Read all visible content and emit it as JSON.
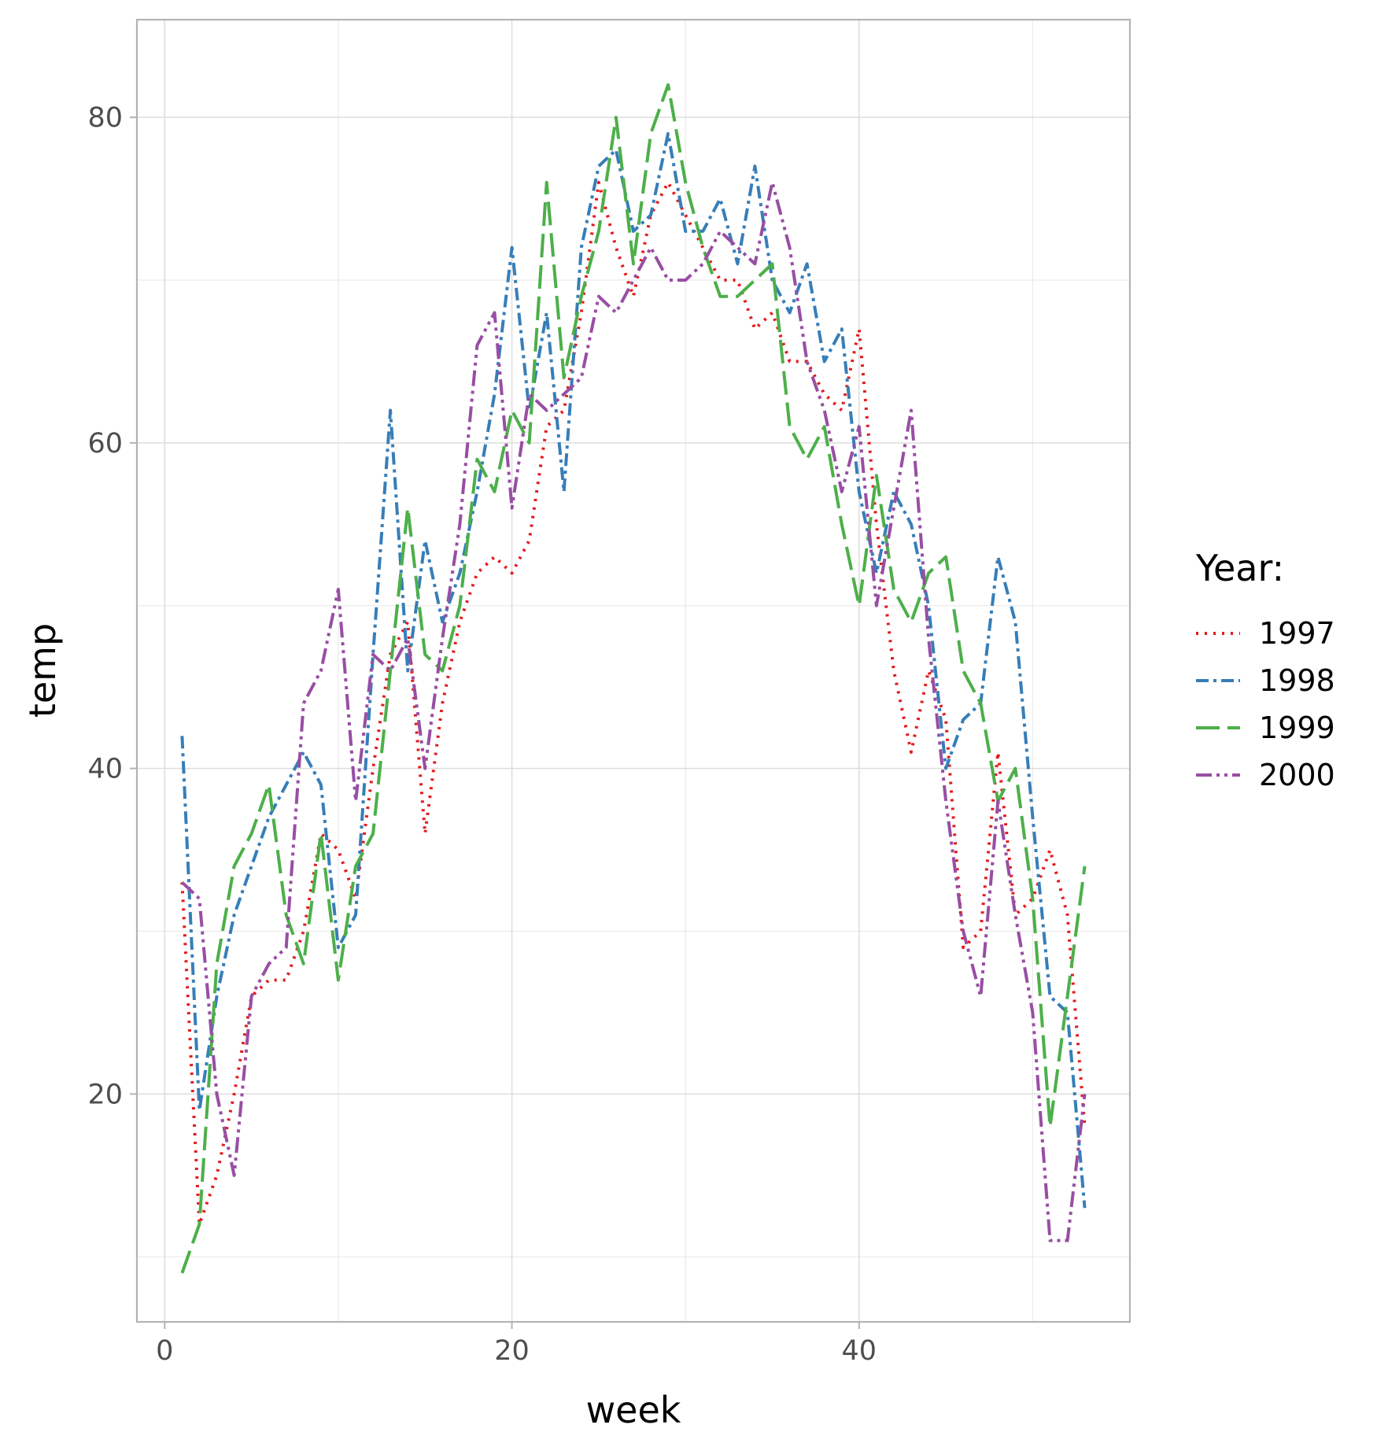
{
  "chart_data": {
    "type": "line",
    "xlabel": "week",
    "ylabel": "temp",
    "xlim": [
      -1.6,
      55.6
    ],
    "ylim": [
      6,
      86
    ],
    "xticks": [
      0,
      20,
      40
    ],
    "yticks": [
      20,
      40,
      60,
      80
    ],
    "xminor": [
      10,
      30,
      50
    ],
    "yminor": [
      10,
      30,
      50,
      70
    ],
    "grid": true,
    "legend": {
      "title": "Year:",
      "position": "right"
    },
    "series": [
      {
        "name": "1997",
        "color": "#e41a1c",
        "dash": "3,8",
        "x": [
          1,
          2,
          3,
          4,
          5,
          6,
          7,
          8,
          9,
          10,
          11,
          12,
          13,
          14,
          15,
          16,
          17,
          18,
          19,
          20,
          21,
          22,
          23,
          24,
          25,
          26,
          27,
          28,
          29,
          30,
          31,
          32,
          33,
          34,
          35,
          36,
          37,
          38,
          39,
          40,
          41,
          42,
          43,
          44,
          45,
          46,
          47,
          48,
          49,
          50,
          51,
          52,
          53
        ],
        "y": [
          33,
          12,
          15,
          20,
          26,
          27,
          27,
          30,
          36,
          35,
          32,
          40,
          47,
          49,
          36,
          44,
          49,
          52,
          53,
          52,
          54,
          61,
          62,
          68,
          76,
          72,
          69,
          74,
          76,
          74,
          72,
          70,
          70,
          67,
          68,
          65,
          65,
          63,
          62,
          67,
          55,
          46,
          41,
          46,
          43,
          29,
          30,
          41,
          31,
          32,
          35,
          31,
          18
        ]
      },
      {
        "name": "1998",
        "color": "#377eb8",
        "dash": "16,6,4,6",
        "x": [
          1,
          2,
          3,
          4,
          5,
          6,
          7,
          8,
          9,
          10,
          11,
          12,
          13,
          14,
          15,
          16,
          17,
          18,
          19,
          20,
          21,
          22,
          23,
          24,
          25,
          26,
          27,
          28,
          29,
          30,
          31,
          32,
          33,
          34,
          35,
          36,
          37,
          38,
          39,
          40,
          41,
          42,
          43,
          44,
          45,
          46,
          47,
          48,
          49,
          50,
          51,
          52,
          53
        ],
        "y": [
          42,
          19,
          26,
          31,
          34,
          37,
          39,
          41,
          39,
          29,
          31,
          47,
          62,
          46,
          54,
          49,
          52,
          57,
          63,
          72,
          62,
          68,
          57,
          72,
          77,
          78,
          73,
          74,
          79,
          73,
          73,
          75,
          71,
          77,
          70,
          68,
          71,
          65,
          67,
          57,
          52,
          57,
          55,
          50,
          40,
          43,
          44,
          53,
          49,
          37,
          26,
          25,
          13
        ]
      },
      {
        "name": "1999",
        "color": "#4daf4a",
        "dash": "30,10",
        "x": [
          1,
          2,
          3,
          4,
          5,
          6,
          7,
          8,
          9,
          10,
          11,
          12,
          13,
          14,
          15,
          16,
          17,
          18,
          19,
          20,
          21,
          22,
          23,
          24,
          25,
          26,
          27,
          28,
          29,
          30,
          31,
          32,
          33,
          34,
          35,
          36,
          37,
          38,
          39,
          40,
          41,
          42,
          43,
          44,
          45,
          46,
          47,
          48,
          49,
          50,
          51,
          52,
          53
        ],
        "y": [
          9,
          12,
          28,
          34,
          36,
          39,
          31,
          28,
          36,
          27,
          34,
          36,
          46,
          56,
          47,
          46,
          50,
          59,
          57,
          62,
          60,
          76,
          64,
          69,
          73,
          80,
          71,
          79,
          82,
          76,
          72,
          69,
          69,
          70,
          71,
          61,
          59,
          61,
          55,
          50,
          58,
          51,
          49,
          52,
          53,
          46,
          44,
          38,
          40,
          32,
          18,
          26,
          34
        ]
      },
      {
        "name": "2000",
        "color": "#984ea3",
        "dash": "20,6,4,6,4,6",
        "x": [
          1,
          2,
          3,
          4,
          5,
          6,
          7,
          8,
          9,
          10,
          11,
          12,
          13,
          14,
          15,
          16,
          17,
          18,
          19,
          20,
          21,
          22,
          23,
          24,
          25,
          26,
          27,
          28,
          29,
          30,
          31,
          32,
          33,
          34,
          35,
          36,
          37,
          38,
          39,
          40,
          41,
          42,
          43,
          44,
          45,
          46,
          47,
          48,
          49,
          50,
          51,
          52,
          53
        ],
        "y": [
          33,
          32,
          20,
          15,
          26,
          28,
          29,
          44,
          46,
          51,
          38,
          47,
          46,
          48,
          40,
          48,
          55,
          66,
          68,
          56,
          63,
          62,
          63,
          64,
          69,
          68,
          70,
          72,
          70,
          70,
          71,
          73,
          72,
          71,
          76,
          72,
          65,
          62,
          57,
          61,
          50,
          56,
          62,
          48,
          38,
          30,
          26,
          38,
          31,
          25,
          11,
          11,
          20
        ]
      }
    ]
  }
}
